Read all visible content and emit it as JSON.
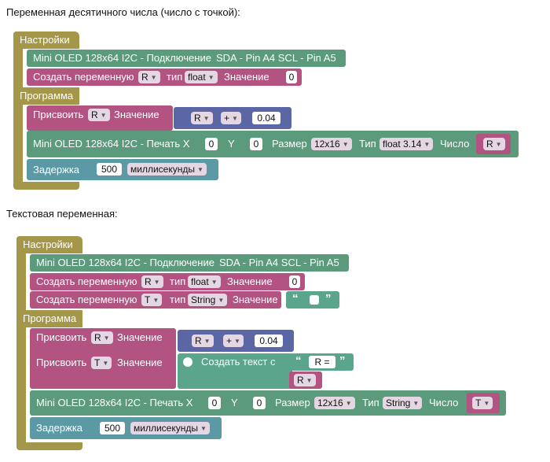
{
  "captions": {
    "float_section": "Переменная десятичного числа (число с точкой):",
    "text_section": "Текстовая переменная:"
  },
  "common": {
    "settings": "Настройки",
    "program": "Программа",
    "oled_connect": "Mini OLED 128x64 I2C - Подключение",
    "pins": "SDA - Pin A4 SCL - Pin A5",
    "create_var": "Создать переменную",
    "type_word": "тип",
    "value_word": "Значение",
    "assign": "Присвоить",
    "print": "Mini OLED 128x64 I2C - Печать X",
    "y_label": "Y",
    "size_label": "Размер",
    "type_cap": "Тип",
    "number_label": "Число",
    "delay": "Задержка",
    "ms": "миллисекунды",
    "make_text": "Создать текст с",
    "quote_open": "“",
    "quote_close": "”"
  },
  "block1": {
    "var_name": "R",
    "var_type": "float",
    "init_value": "0",
    "assign_var": "R",
    "expr_var": "R",
    "op": "+",
    "increment": "0.04",
    "x": "0",
    "y": "0",
    "size": "12x16",
    "print_type": "float 3.14",
    "print_var": "R",
    "delay": "500"
  },
  "block2": {
    "var_name": "R",
    "var_type": "float",
    "init_value": "0",
    "var2_name": "T",
    "var2_type": "String",
    "assign_var": "R",
    "expr_var": "R",
    "op": "+",
    "increment": "0.04",
    "assign_text_var": "T",
    "text_literal": "R =",
    "text_var": "R",
    "x": "0",
    "y": "0",
    "size": "12x16",
    "print_type": "String",
    "print_var": "T",
    "delay": "500"
  },
  "colors": {
    "setup": "#a5974a",
    "oled": "#5b9a7b",
    "variable": "#b25382",
    "math": "#5b67a5",
    "text": "#5ba58c",
    "delay": "#5b9aa5"
  }
}
